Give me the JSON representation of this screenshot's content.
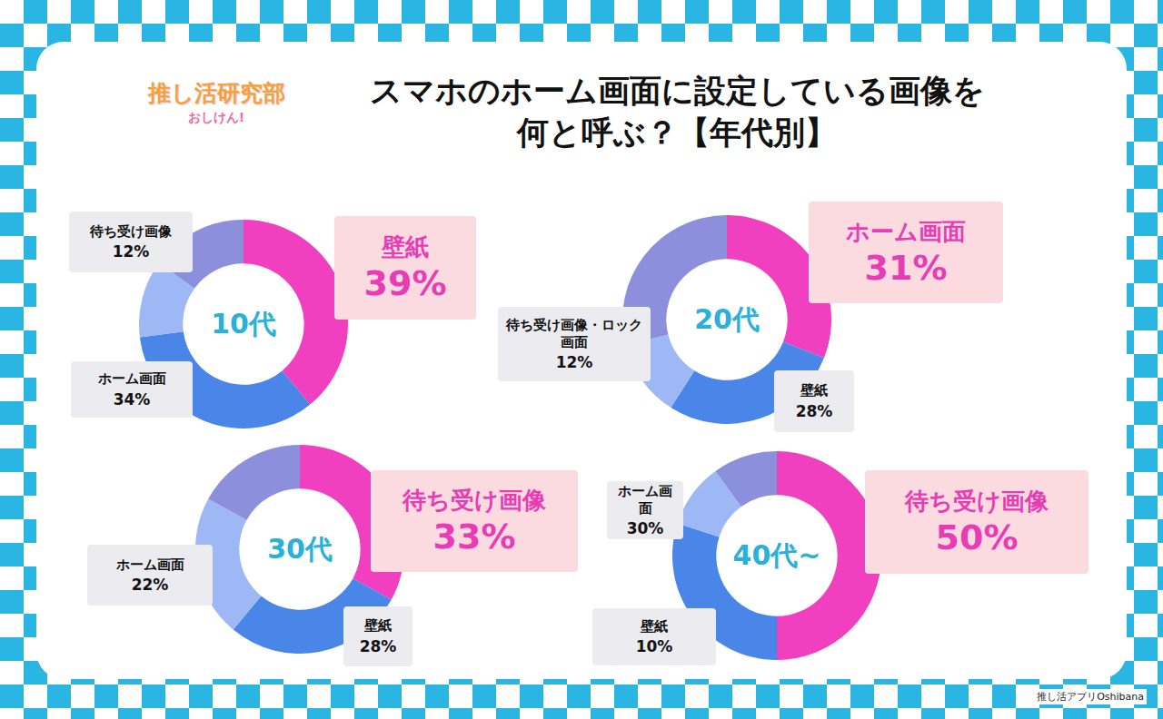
{
  "page": {
    "title": "スマホのホーム画面に設定している画像を何と呼ぶ？【年代別】",
    "logo": "推し活研究部",
    "logo_sub": "おしけん!",
    "source": "推し活アプリOshibana"
  },
  "chart_data": [
    {
      "type": "pie",
      "title": "10代",
      "categories": [
        "壁紙",
        "ホーム画面",
        "待ち受け画像",
        null
      ],
      "values": [
        39,
        34,
        12,
        15
      ],
      "value_labels": [
        "39%",
        "34%",
        "12%",
        null
      ],
      "colors": [
        "#f03fbf",
        "#4a86e8",
        "#9db8f5",
        "#8b8fdc"
      ],
      "data_labels": true
    },
    {
      "type": "pie",
      "title": "20代",
      "categories": [
        "ホーム画面",
        "壁紙",
        "待ち受け画像・ロック画面",
        null
      ],
      "values": [
        31,
        28,
        12,
        29
      ],
      "value_labels": [
        "31%",
        "28%",
        "12%",
        null
      ],
      "colors": [
        "#f03fbf",
        "#4a86e8",
        "#9db8f5",
        "#8b8fdc"
      ],
      "data_labels": true
    },
    {
      "type": "pie",
      "title": "30代",
      "categories": [
        "待ち受け画像",
        "壁紙",
        "ホーム画面",
        null
      ],
      "values": [
        33,
        28,
        22,
        17
      ],
      "value_labels": [
        "33%",
        "28%",
        "22%",
        null
      ],
      "colors": [
        "#f03fbf",
        "#4a86e8",
        "#9db8f5",
        "#8b8fdc"
      ],
      "data_labels": true
    },
    {
      "type": "pie",
      "title": "40代~",
      "categories": [
        "待ち受け画像",
        "ホーム画面",
        "壁紙",
        null
      ],
      "values": [
        50,
        30,
        10,
        10
      ],
      "value_labels": [
        "50%",
        "30%",
        "10%",
        null
      ],
      "colors": [
        "#f03fbf",
        "#4a86e8",
        "#9db8f5",
        "#8b8fdc"
      ],
      "data_labels": true
    }
  ]
}
